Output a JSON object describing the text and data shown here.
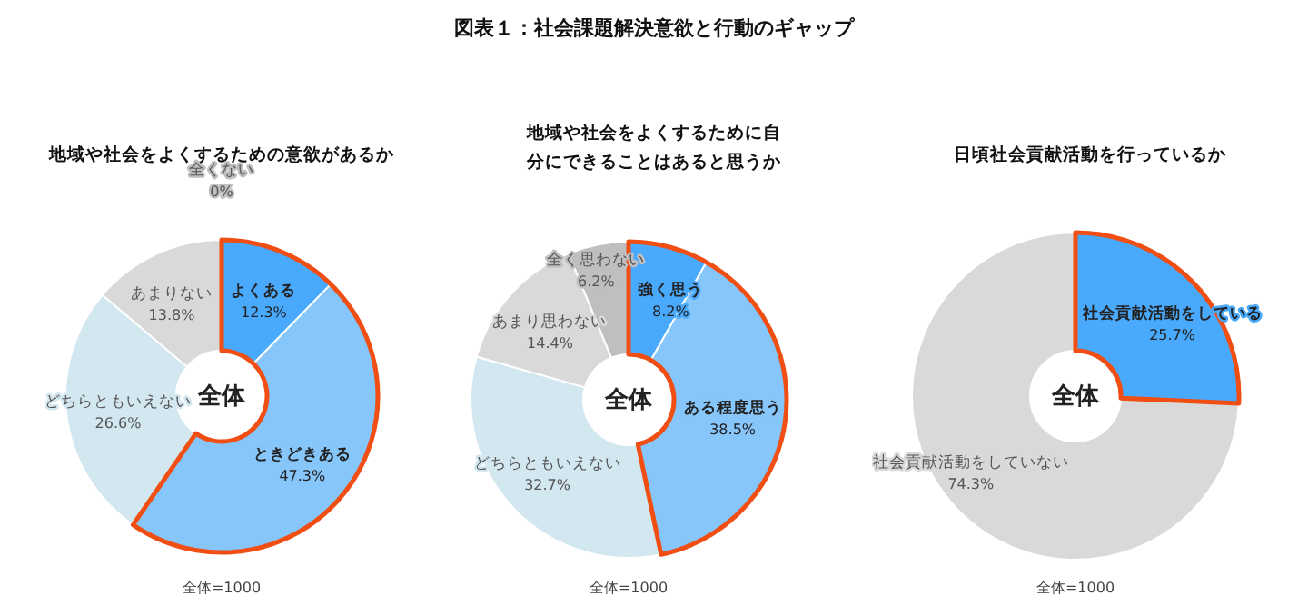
{
  "chart_data": [
    {
      "type": "donut",
      "title": "地域や社会をよくするための意欲があるか",
      "categories": [
        "よくある",
        "ときどきある",
        "どちらともいえない",
        "あまりない",
        "全くない"
      ],
      "values": [
        12.3,
        47.3,
        26.6,
        13.8,
        0
      ],
      "value_labels": [
        "12.3%",
        "47.3%",
        "26.6%",
        "13.8%",
        "0%"
      ],
      "colors": [
        "#49a9fd",
        "#86c6fb",
        "#d2e7f0",
        "#d9d9d9",
        "#bfbfbf"
      ],
      "legend": false,
      "annotations": [
        "全体",
        "全体=1000"
      ]
    },
    {
      "type": "donut",
      "title": "図表１：社会課題解決意欲と行動のギャップ",
      "subtitle": "地域や社会をよくするために自分にできることはあると思うか",
      "categories": [
        "強く思う",
        "ある程度思う",
        "どちらともいえない",
        "あまり思わない",
        "全く思わない"
      ],
      "values": [
        8.2,
        38.5,
        32.7,
        14.4,
        6.2
      ],
      "value_labels": [
        "8.2%",
        "38.5%",
        "32.7%",
        "14.4%",
        "6.2%"
      ],
      "colors": [
        "#49a9fd",
        "#86c6fb",
        "#d2e7f0",
        "#d9d9d9",
        "#bfbfbf"
      ],
      "legend": false,
      "annotations": [
        "全体",
        "全体=1000"
      ]
    },
    {
      "type": "donut",
      "title": "日頃社会貢献活動を行っているか",
      "categories": [
        "社会貢献活動をしている",
        "社会貢献活動をしていない"
      ],
      "values": [
        25.7,
        74.3
      ],
      "value_labels": [
        "25.7%",
        "74.3%"
      ],
      "colors": [
        "#49a9fd",
        "#d9d9d9"
      ],
      "legend": false,
      "annotations": [
        "全体",
        "全体=1000"
      ]
    }
  ]
}
